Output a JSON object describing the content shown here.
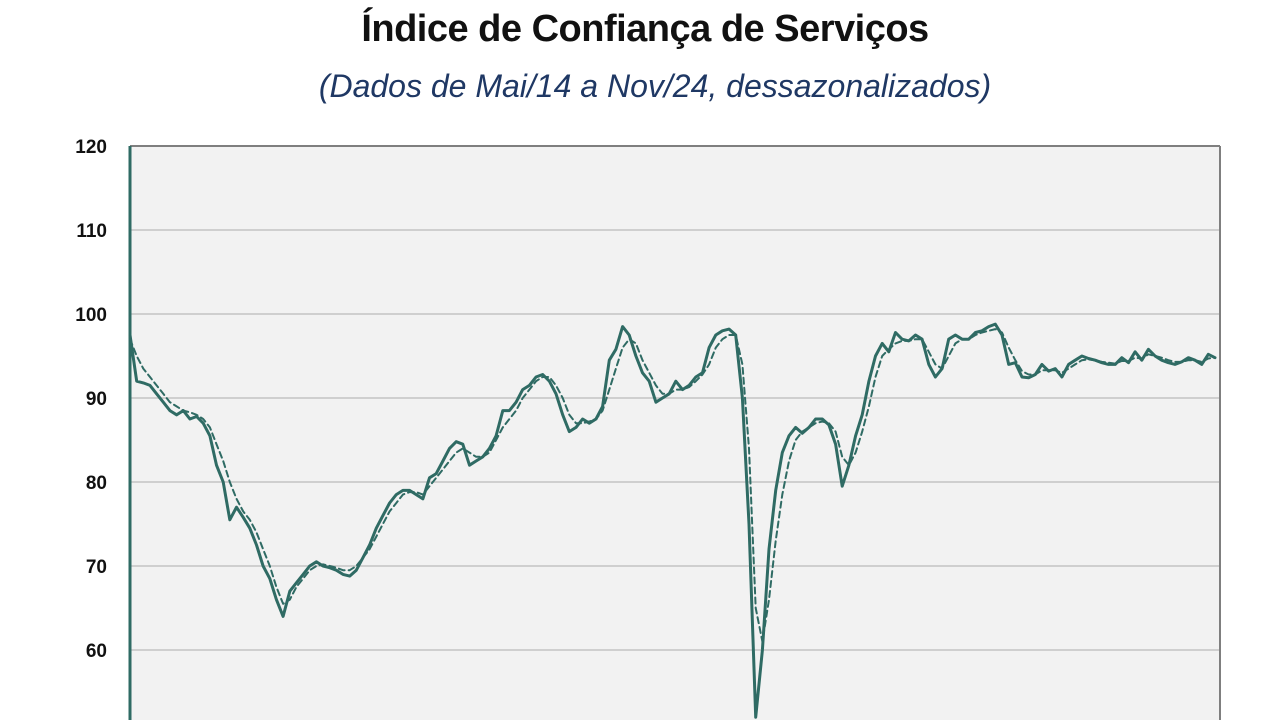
{
  "chart_data": {
    "type": "line",
    "title": "Índice de Confiança de Serviços",
    "subtitle": "(Dados de Mai/14 a Nov/24, dessazonalizados)",
    "xlabel": "",
    "ylabel": "",
    "x_range": [
      "Mai/14",
      "Nov/24"
    ],
    "ylim_visible": [
      60,
      120
    ],
    "yticks": [
      "120",
      "110",
      "100",
      "90",
      "80",
      "70",
      "60"
    ],
    "grid": true,
    "legend": "none",
    "colors": {
      "line": "#2f6b64",
      "plot_bg": "#f2f2f2",
      "grid": "#cfcfcf"
    },
    "series": [
      {
        "style": "solid",
        "values": [
          97.5,
          92.0,
          91.8,
          91.5,
          90.5,
          89.5,
          88.5,
          88.0,
          88.5,
          87.5,
          87.8,
          87.0,
          85.5,
          82.0,
          80.0,
          75.5,
          77.0,
          75.8,
          74.5,
          72.5,
          70.0,
          68.5,
          66.0,
          64.0,
          67.0,
          68.0,
          69.0,
          70.0,
          70.5,
          70.0,
          69.8,
          69.5,
          69.0,
          68.8,
          69.5,
          71.0,
          72.5,
          74.5,
          76.0,
          77.5,
          78.5,
          79.0,
          79.0,
          78.5,
          78.0,
          80.5,
          81.0,
          82.5,
          84.0,
          84.8,
          84.5,
          82.0,
          82.5,
          83.0,
          84.0,
          85.5,
          88.5,
          88.5,
          89.5,
          91.0,
          91.5,
          92.5,
          92.8,
          92.0,
          90.5,
          88.0,
          86.0,
          86.5,
          87.5,
          87.0,
          87.5,
          89.0,
          94.5,
          95.8,
          98.5,
          97.5,
          95.0,
          93.0,
          92.0,
          89.5,
          90.0,
          90.5,
          92.0,
          91.0,
          91.5,
          92.5,
          93.0,
          96.0,
          97.5,
          98.0,
          98.2,
          97.5,
          90.0,
          75.0,
          52.0,
          60.0,
          72.0,
          79.0,
          83.5,
          85.5,
          86.5,
          85.8,
          86.5,
          87.5,
          87.5,
          86.8,
          84.5,
          79.5,
          82.0,
          85.5,
          88.0,
          92.0,
          95.0,
          96.5,
          95.5,
          97.8,
          97.0,
          96.8,
          97.5,
          97.0,
          94.0,
          92.5,
          93.5,
          97.0,
          97.5,
          97.0,
          97.0,
          97.8,
          98.0,
          98.5,
          98.8,
          97.5,
          94.0,
          94.2,
          92.5,
          92.4,
          92.8,
          94.0,
          93.2,
          93.5,
          92.5,
          94.0,
          94.5,
          95.0,
          94.7,
          94.5,
          94.2,
          94.0,
          94.0,
          94.8,
          94.2,
          95.5,
          94.5,
          95.8,
          95.0,
          94.5,
          94.2,
          94.0,
          94.3,
          94.8,
          94.5,
          94.0,
          95.2,
          94.8
        ]
      },
      {
        "style": "dashed",
        "values": [
          97.0,
          95.0,
          93.5,
          92.5,
          91.5,
          90.5,
          89.5,
          89.0,
          88.5,
          88.3,
          88.0,
          87.5,
          86.5,
          84.5,
          82.5,
          80.0,
          78.0,
          76.5,
          75.5,
          74.0,
          72.0,
          70.0,
          67.5,
          65.5,
          66.0,
          67.5,
          68.5,
          69.5,
          70.0,
          70.2,
          70.0,
          69.8,
          69.5,
          69.5,
          70.0,
          71.0,
          72.0,
          73.5,
          75.0,
          76.5,
          77.5,
          78.5,
          78.8,
          78.8,
          78.5,
          79.5,
          80.5,
          81.5,
          82.5,
          83.5,
          84.0,
          83.5,
          83.0,
          83.0,
          83.5,
          85.0,
          86.5,
          87.5,
          88.5,
          90.0,
          91.0,
          92.0,
          92.5,
          92.5,
          91.5,
          90.0,
          88.0,
          87.0,
          87.0,
          87.2,
          87.5,
          88.5,
          91.0,
          93.5,
          96.0,
          97.0,
          96.5,
          94.5,
          93.0,
          91.5,
          90.5,
          90.5,
          91.0,
          91.0,
          91.3,
          92.0,
          92.8,
          94.0,
          96.0,
          97.0,
          97.5,
          97.5,
          94.0,
          84.0,
          65.0,
          61.0,
          66.0,
          73.0,
          78.5,
          82.5,
          85.0,
          86.0,
          86.5,
          87.0,
          87.2,
          87.0,
          86.0,
          83.0,
          82.0,
          83.5,
          86.0,
          89.0,
          92.5,
          95.0,
          95.8,
          96.5,
          96.8,
          96.8,
          97.0,
          97.0,
          95.5,
          94.0,
          93.5,
          95.0,
          96.5,
          97.0,
          97.0,
          97.5,
          97.8,
          98.0,
          98.2,
          97.8,
          96.0,
          94.5,
          93.2,
          92.8,
          92.8,
          93.3,
          93.3,
          93.3,
          93.0,
          93.5,
          94.0,
          94.5,
          94.6,
          94.5,
          94.3,
          94.2,
          94.1,
          94.4,
          94.4,
          94.8,
          94.7,
          95.2,
          95.0,
          94.8,
          94.5,
          94.3,
          94.3,
          94.5,
          94.5,
          94.3,
          94.7,
          94.8
        ]
      }
    ]
  }
}
